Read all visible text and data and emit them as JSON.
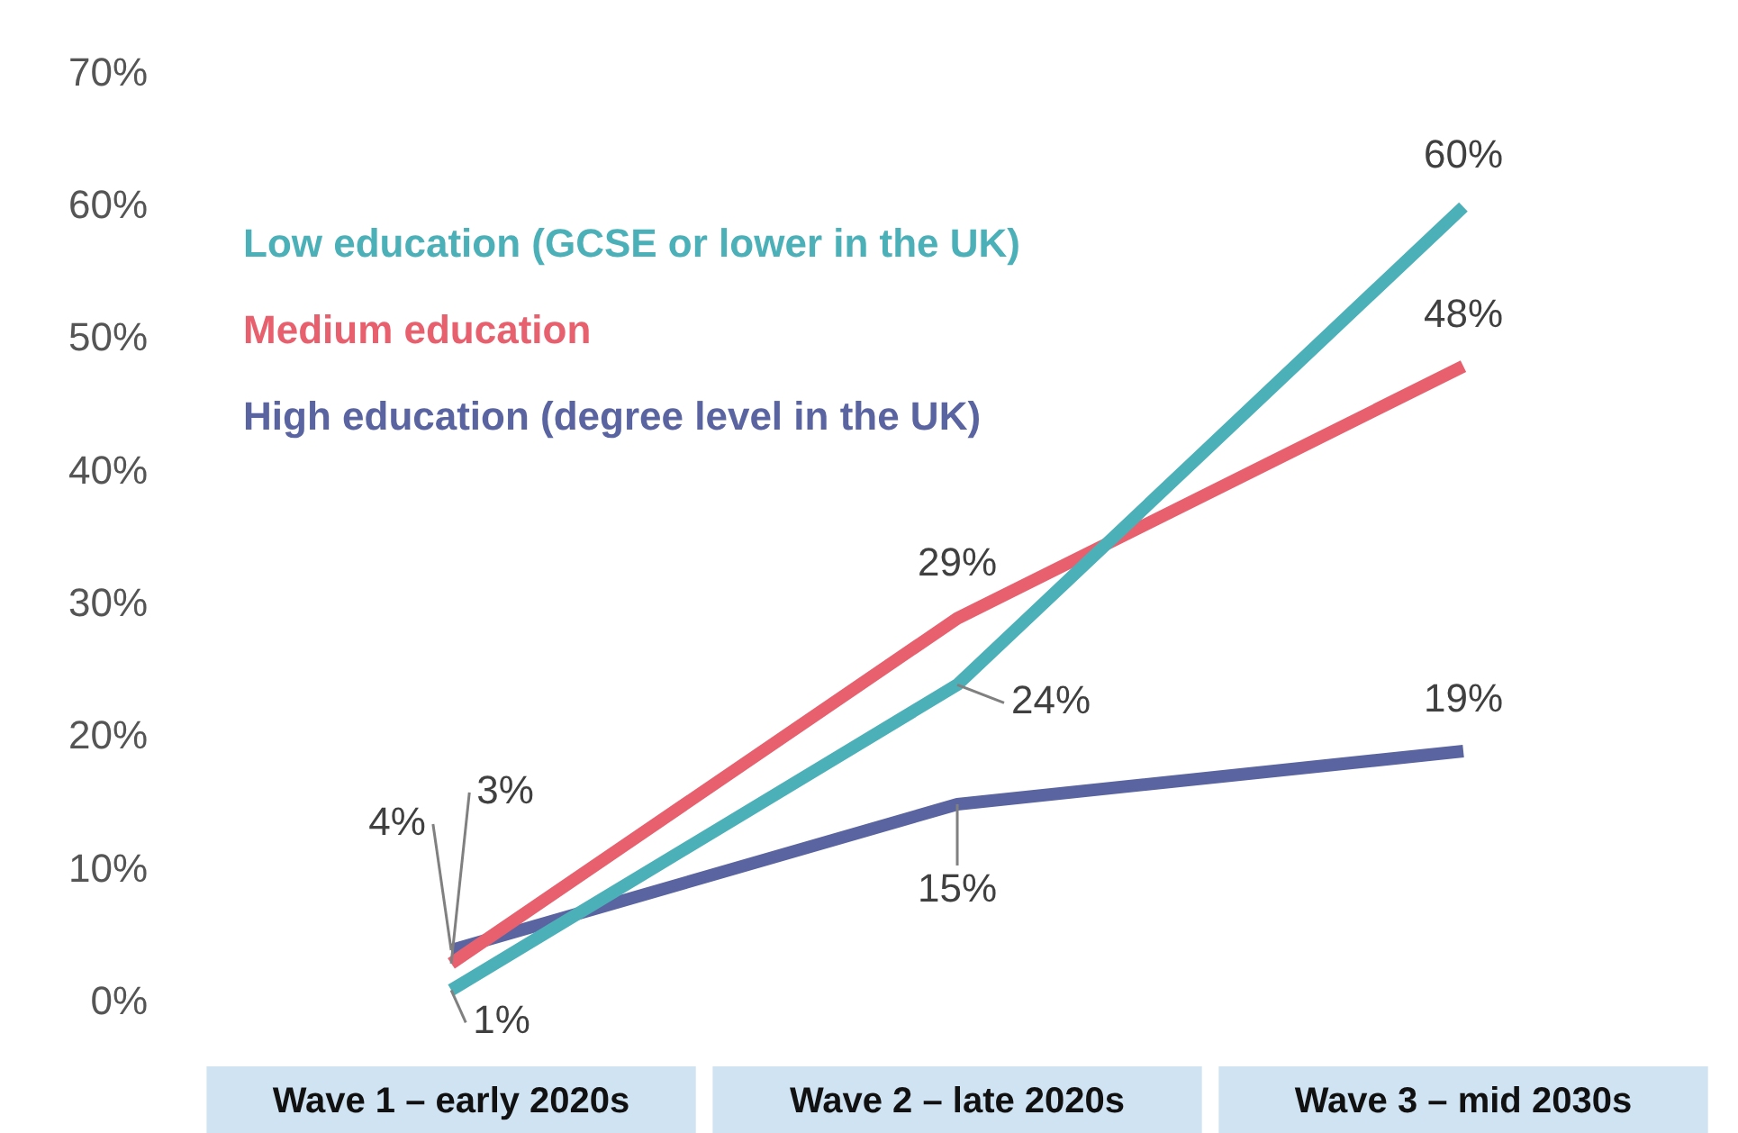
{
  "chart_data": {
    "type": "line",
    "categories": [
      "Wave 1 – early 2020s",
      "Wave 2 – late 2020s",
      "Wave 3 – mid 2030s"
    ],
    "series": [
      {
        "name": "Low education (GCSE or lower in the UK)",
        "color": "#4bb0b8",
        "values": [
          1,
          24,
          60
        ],
        "value_labels": [
          "1%",
          "24%",
          "60%"
        ]
      },
      {
        "name": "Medium education",
        "color": "#e8606e",
        "values": [
          3,
          29,
          48
        ],
        "value_labels": [
          "3%",
          "29%",
          "48%"
        ]
      },
      {
        "name": "High education (degree level in the UK)",
        "color": "#5a64a0",
        "values": [
          4,
          15,
          19
        ],
        "value_labels": [
          "4%",
          "15%",
          "19%"
        ]
      }
    ],
    "ylim": [
      0,
      70
    ],
    "yticks": [
      {
        "value": 0,
        "label": "0%"
      },
      {
        "value": 10,
        "label": "10%"
      },
      {
        "value": 20,
        "label": "20%"
      },
      {
        "value": 30,
        "label": "30%"
      },
      {
        "value": 40,
        "label": "40%"
      },
      {
        "value": 50,
        "label": "50%"
      },
      {
        "value": 60,
        "label": "60%"
      },
      {
        "value": 70,
        "label": "70%"
      }
    ],
    "grid": false,
    "legend": "top left",
    "marker": "none",
    "line_style": "solid"
  }
}
